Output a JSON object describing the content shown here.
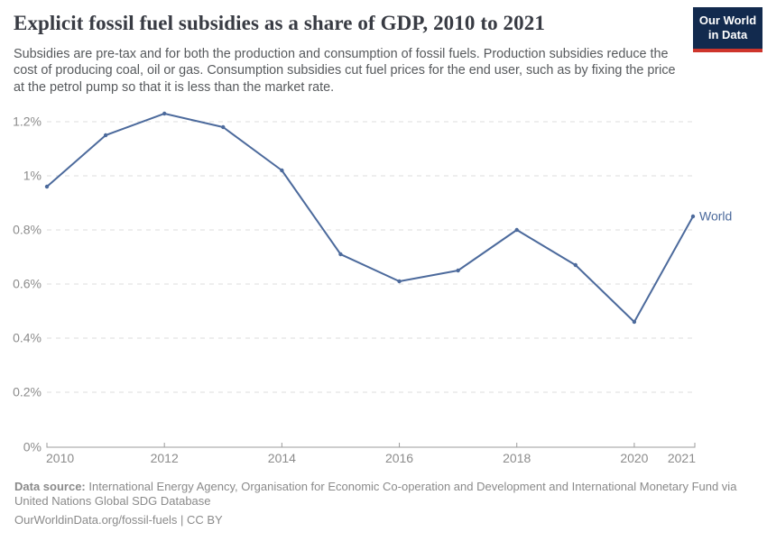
{
  "header": {
    "title": "Explicit fossil fuel subsidies as a share of GDP, 2010 to 2021",
    "subtitle": "Subsidies are pre-tax and for both the production and consumption of fossil fuels. Production subsidies reduce the cost of producing coal, oil or gas. Consumption subsidies cut fuel prices for the end user, such as by fixing the price at the petrol pump so that it is less than the market rate.",
    "logo": {
      "line1": "Our World",
      "line2": "in Data",
      "bg_color": "#122a4e",
      "stripe_color": "#ce352c"
    }
  },
  "chart_data": {
    "type": "line",
    "title": "Explicit fossil fuel subsidies as a share of GDP, 2010 to 2021",
    "x": [
      2010,
      2011,
      2012,
      2013,
      2014,
      2015,
      2016,
      2017,
      2018,
      2019,
      2020,
      2021
    ],
    "series": [
      {
        "name": "World",
        "color": "#4c6a9c",
        "values": [
          0.96,
          1.15,
          1.23,
          1.18,
          1.02,
          0.71,
          0.61,
          0.65,
          0.8,
          0.67,
          0.46,
          0.85
        ]
      }
    ],
    "unit": "%",
    "xlabel": "",
    "ylabel": "",
    "x_tick_labels": [
      "2010",
      "2012",
      "2014",
      "2016",
      "2018",
      "2020",
      "2021"
    ],
    "x_tick_values": [
      2010,
      2012,
      2014,
      2016,
      2018,
      2020,
      2021
    ],
    "y_ticks": [
      {
        "value": 0,
        "label": "0%"
      },
      {
        "value": 0.2,
        "label": "0.2%"
      },
      {
        "value": 0.4,
        "label": "0.4%"
      },
      {
        "value": 0.6,
        "label": "0.6%"
      },
      {
        "value": 0.8,
        "label": "0.8%"
      },
      {
        "value": 1.0,
        "label": "1%"
      },
      {
        "value": 1.2,
        "label": "1.2%"
      }
    ],
    "ylim": [
      0,
      1.2
    ],
    "xlim": [
      2010,
      2021
    ],
    "grid": "horizontal-dashed",
    "grid_color": "#dcdcdc",
    "axis_color": "#9b9b9b",
    "tick_label_color": "#8c8c8c",
    "end_label": "World",
    "legend_position": "end-of-line"
  },
  "footer": {
    "source_label": "Data source:",
    "source_text": " International Energy Agency, Organisation for Economic Co-operation and Development and International Monetary Fund via United Nations Global SDG Database",
    "citation": "OurWorldinData.org/fossil-fuels | CC BY"
  }
}
